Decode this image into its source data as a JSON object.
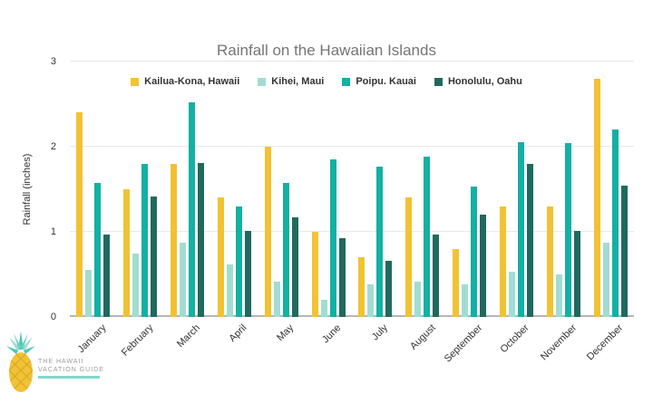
{
  "chart_data": {
    "type": "bar",
    "title": "Rainfall on the Hawaiian Islands",
    "ylabel": "Rainfall (inches)",
    "ylim": [
      0,
      3
    ],
    "yticks": [
      0,
      1,
      2,
      3
    ],
    "grid": true,
    "legend_position": "top",
    "categories": [
      "January",
      "February",
      "March",
      "April",
      "May",
      "June",
      "July",
      "August",
      "September",
      "October",
      "November",
      "December"
    ],
    "series": [
      {
        "name": "Kailua-Kona, Hawaii",
        "color": "#F1C233",
        "values": [
          2.4,
          1.5,
          1.8,
          1.4,
          2.0,
          1.0,
          0.7,
          1.4,
          0.8,
          1.3,
          1.3,
          2.8
        ]
      },
      {
        "name": "Kihei, Maui",
        "color": "#A3DCD2",
        "values": [
          0.55,
          0.75,
          0.87,
          0.62,
          0.42,
          0.2,
          0.38,
          0.42,
          0.38,
          0.53,
          0.5,
          0.87
        ]
      },
      {
        "name": "Poipu. Kauai",
        "color": "#14B0A4",
        "values": [
          1.57,
          1.8,
          2.52,
          1.3,
          1.57,
          1.85,
          1.77,
          1.88,
          1.53,
          2.05,
          2.04,
          2.2
        ]
      },
      {
        "name": "Honolulu, Oahu",
        "color": "#20695E",
        "values": [
          0.97,
          1.42,
          1.81,
          1.01,
          1.17,
          0.93,
          0.66,
          0.97,
          1.2,
          1.8,
          1.01,
          1.54
        ]
      }
    ]
  },
  "axis_colors": {
    "grid": "#e8e8e8",
    "baseline": "#b5b5b5",
    "title": "#757575",
    "text": "#333333"
  },
  "logo": {
    "line1": "THE HAWAII",
    "line2": "VACATION GUIDE"
  }
}
